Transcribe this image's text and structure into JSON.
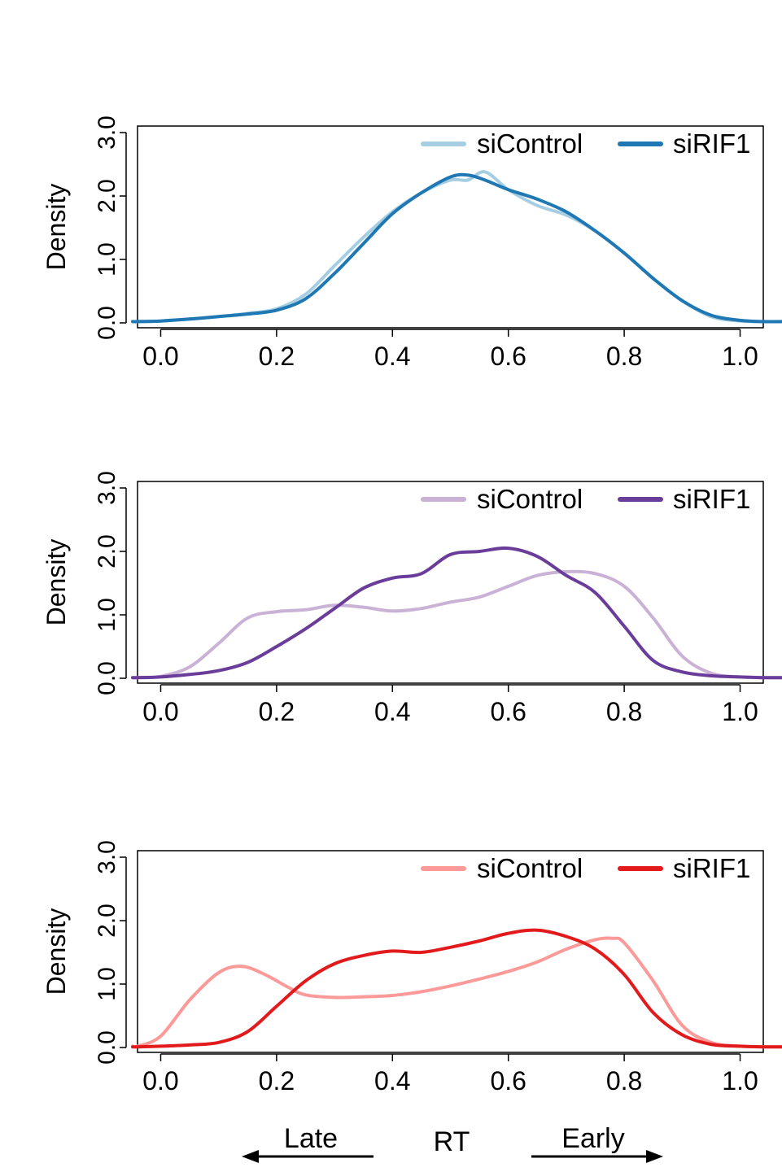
{
  "chart_data": [
    {
      "type": "line",
      "ylabel": "Density",
      "xlim": [
        -0.04,
        1.04
      ],
      "ylim": [
        0,
        3.0
      ],
      "xticks": [
        "0.0",
        "0.2",
        "0.4",
        "0.6",
        "0.8",
        "1.0"
      ],
      "yticks": [
        "0.0",
        "1.0",
        "2.0",
        "3.0"
      ],
      "legend": "top-right",
      "series": [
        {
          "name": "siControl",
          "color": "#a6cee3",
          "x": [
            -0.04,
            0.0,
            0.05,
            0.1,
            0.15,
            0.2,
            0.25,
            0.3,
            0.35,
            0.4,
            0.45,
            0.5,
            0.53,
            0.56,
            0.6,
            0.65,
            0.7,
            0.75,
            0.8,
            0.85,
            0.9,
            0.95,
            1.0,
            1.04
          ],
          "y": [
            0.02,
            0.03,
            0.06,
            0.1,
            0.15,
            0.22,
            0.45,
            0.9,
            1.35,
            1.75,
            2.05,
            2.25,
            2.25,
            2.38,
            2.1,
            1.85,
            1.7,
            1.45,
            1.1,
            0.7,
            0.35,
            0.1,
            0.03,
            0.02
          ]
        },
        {
          "name": "siRIF1",
          "color": "#1f78b4",
          "x": [
            -0.04,
            0.0,
            0.05,
            0.1,
            0.15,
            0.2,
            0.25,
            0.3,
            0.35,
            0.4,
            0.45,
            0.5,
            0.53,
            0.56,
            0.6,
            0.65,
            0.7,
            0.75,
            0.8,
            0.85,
            0.9,
            0.95,
            1.0,
            1.04
          ],
          "y": [
            0.02,
            0.03,
            0.06,
            0.1,
            0.14,
            0.2,
            0.38,
            0.78,
            1.25,
            1.72,
            2.05,
            2.3,
            2.33,
            2.25,
            2.1,
            1.95,
            1.75,
            1.45,
            1.1,
            0.7,
            0.35,
            0.12,
            0.04,
            0.02
          ]
        }
      ]
    },
    {
      "type": "line",
      "ylabel": "Density",
      "xlim": [
        -0.04,
        1.04
      ],
      "ylim": [
        0,
        3.0
      ],
      "xticks": [
        "0.0",
        "0.2",
        "0.4",
        "0.6",
        "0.8",
        "1.0"
      ],
      "yticks": [
        "0.0",
        "1.0",
        "2.0",
        "3.0"
      ],
      "legend": "top-right",
      "series": [
        {
          "name": "siControl",
          "color": "#cab2d6",
          "x": [
            -0.04,
            0.0,
            0.05,
            0.1,
            0.15,
            0.2,
            0.25,
            0.3,
            0.35,
            0.4,
            0.45,
            0.5,
            0.55,
            0.6,
            0.65,
            0.7,
            0.75,
            0.8,
            0.85,
            0.9,
            0.95,
            1.0,
            1.04
          ],
          "y": [
            0.01,
            0.03,
            0.18,
            0.55,
            0.95,
            1.05,
            1.08,
            1.15,
            1.12,
            1.06,
            1.1,
            1.2,
            1.28,
            1.45,
            1.62,
            1.68,
            1.65,
            1.45,
            0.95,
            0.35,
            0.08,
            0.02,
            0.01
          ]
        },
        {
          "name": "siRIF1",
          "color": "#6a3d9a",
          "x": [
            -0.04,
            0.0,
            0.05,
            0.1,
            0.15,
            0.2,
            0.25,
            0.3,
            0.35,
            0.4,
            0.45,
            0.5,
            0.55,
            0.6,
            0.65,
            0.7,
            0.75,
            0.8,
            0.85,
            0.9,
            0.95,
            1.0,
            1.04
          ],
          "y": [
            0.01,
            0.02,
            0.06,
            0.12,
            0.25,
            0.5,
            0.78,
            1.1,
            1.42,
            1.58,
            1.65,
            1.95,
            2.0,
            2.05,
            1.92,
            1.62,
            1.35,
            0.82,
            0.28,
            0.1,
            0.04,
            0.02,
            0.01
          ]
        }
      ]
    },
    {
      "type": "line",
      "ylabel": "Density",
      "xlim": [
        -0.04,
        1.04
      ],
      "ylim": [
        0,
        3.0
      ],
      "xticks": [
        "0.0",
        "0.2",
        "0.4",
        "0.6",
        "0.8",
        "1.0"
      ],
      "yticks": [
        "0.0",
        "1.0",
        "2.0",
        "3.0"
      ],
      "legend": "top-right",
      "series": [
        {
          "name": "siControl",
          "color": "#fb9a99",
          "x": [
            -0.04,
            0.0,
            0.05,
            0.1,
            0.14,
            0.18,
            0.22,
            0.25,
            0.3,
            0.35,
            0.4,
            0.45,
            0.5,
            0.55,
            0.6,
            0.65,
            0.7,
            0.75,
            0.78,
            0.8,
            0.85,
            0.9,
            0.95,
            1.0,
            1.04
          ],
          "y": [
            0.02,
            0.18,
            0.75,
            1.18,
            1.28,
            1.15,
            0.95,
            0.83,
            0.79,
            0.8,
            0.82,
            0.88,
            0.97,
            1.08,
            1.2,
            1.35,
            1.55,
            1.7,
            1.72,
            1.65,
            1.05,
            0.35,
            0.08,
            0.02,
            0.01
          ]
        },
        {
          "name": "siRIF1",
          "color": "#e31a1c",
          "x": [
            -0.04,
            0.0,
            0.05,
            0.1,
            0.15,
            0.2,
            0.25,
            0.3,
            0.35,
            0.4,
            0.45,
            0.5,
            0.55,
            0.6,
            0.65,
            0.7,
            0.75,
            0.8,
            0.85,
            0.9,
            0.95,
            1.0,
            1.04
          ],
          "y": [
            0.01,
            0.02,
            0.04,
            0.08,
            0.25,
            0.65,
            1.05,
            1.32,
            1.45,
            1.52,
            1.5,
            1.58,
            1.68,
            1.8,
            1.85,
            1.75,
            1.55,
            1.15,
            0.55,
            0.2,
            0.05,
            0.02,
            0.01
          ]
        }
      ]
    }
  ],
  "footer": {
    "late_label": "Late",
    "rt_label": "RT",
    "early_label": "Early"
  }
}
